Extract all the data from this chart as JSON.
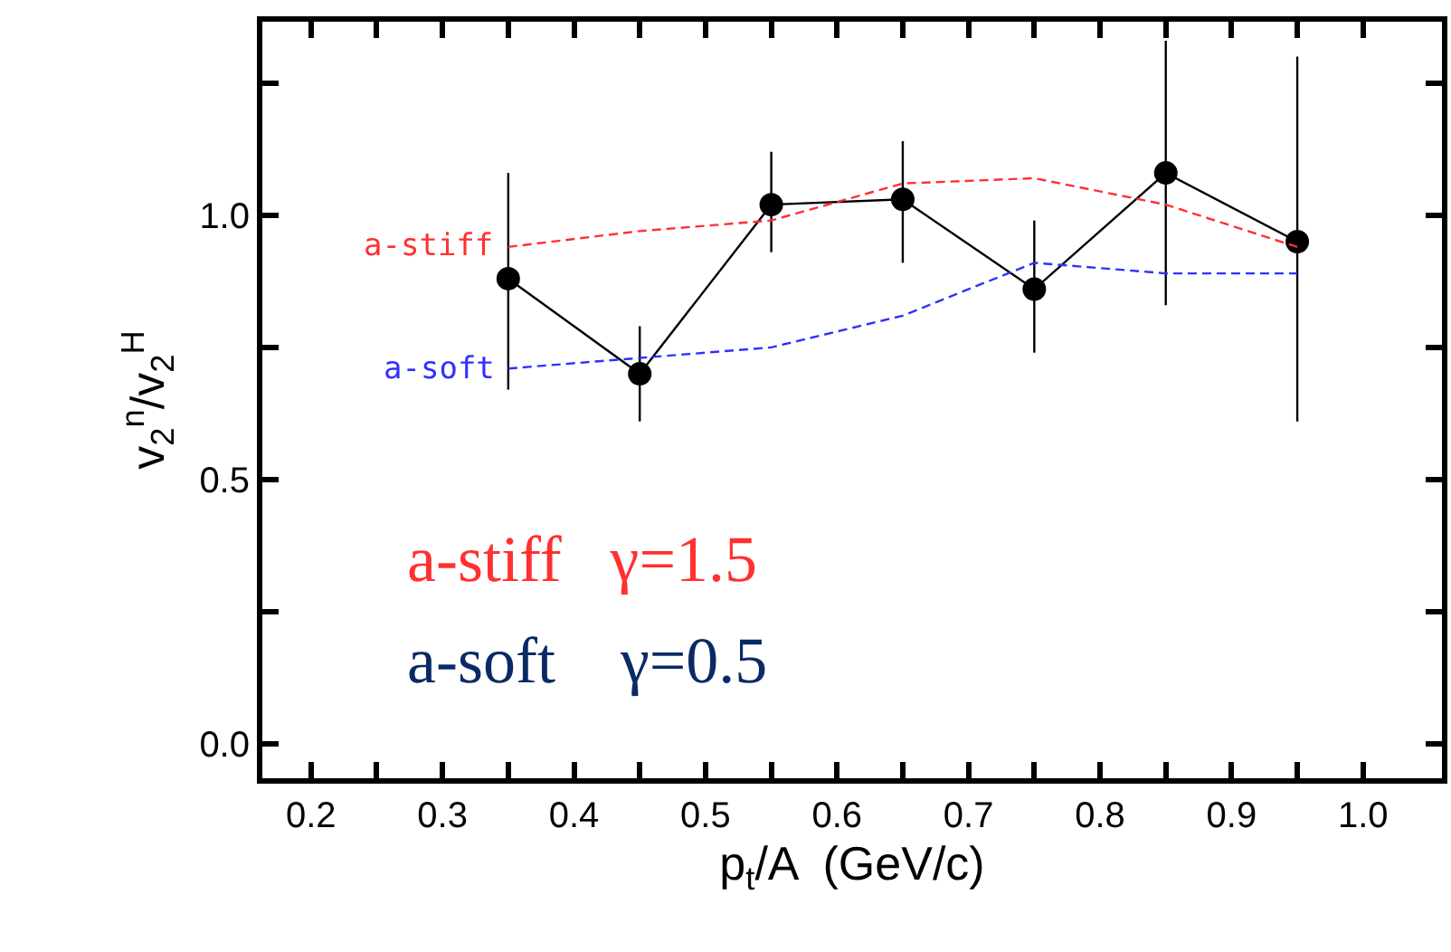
{
  "chart_data": {
    "type": "line",
    "xlabel": "p$_{t}$/A  (GeV/c)",
    "ylabel": "v$_{2}$$^{n}$/v$_{2}$$^{H}$",
    "x": [
      0.35,
      0.45,
      0.55,
      0.65,
      0.75,
      0.85,
      0.95
    ],
    "series": [
      {
        "color": "#000000",
        "marker": "circle",
        "line_style": "solid",
        "values": [
          0.88,
          0.7,
          1.02,
          1.03,
          0.86,
          1.08,
          0.95
        ],
        "errors": [
          [
            0.67,
            1.08
          ],
          [
            0.61,
            0.79
          ],
          [
            0.93,
            1.12
          ],
          [
            0.91,
            1.14
          ],
          [
            0.74,
            0.99
          ],
          [
            0.83,
            1.33
          ],
          [
            0.61,
            1.3
          ]
        ]
      },
      {
        "name": "a-stiff",
        "color": "#ff3030",
        "marker": "none",
        "line_style": "dashed",
        "values": [
          0.94,
          0.97,
          0.99,
          1.06,
          1.07,
          1.02,
          0.94
        ]
      },
      {
        "name": "a-soft",
        "color": "#3030ff",
        "marker": "none",
        "line_style": "dashed",
        "values": [
          0.71,
          0.73,
          0.75,
          0.81,
          0.91,
          0.89,
          0.89
        ]
      }
    ],
    "annotations": [
      "a-stiff   γ=1.5",
      "a-soft    γ=0.5"
    ],
    "xlim": [
      0.163,
      1.06
    ],
    "ylim": [
      -0.065,
      1.366
    ],
    "xticks": [
      0.2,
      {
        "value": 0.25,
        "label": null
      },
      0.3,
      {
        "value": 0.35,
        "label": null
      },
      0.4,
      {
        "value": 0.45,
        "label": null
      },
      0.5,
      {
        "value": 0.55,
        "label": null
      },
      0.6,
      {
        "value": 0.65,
        "label": null
      },
      0.7,
      {
        "value": 0.75,
        "label": null
      },
      0.8,
      {
        "value": 0.85,
        "label": null
      },
      0.9,
      {
        "value": 0.95,
        "label": null
      },
      {
        "value": 1,
        "label": "1.0"
      }
    ],
    "yticks": [
      {
        "value": 0,
        "label": "0.0"
      },
      {
        "value": 0.25,
        "label": null
      },
      0.5,
      {
        "value": 0.75,
        "label": null
      },
      {
        "value": 1,
        "label": "1.0"
      },
      {
        "value": 1.25,
        "label": null
      }
    ],
    "legend": false
  }
}
